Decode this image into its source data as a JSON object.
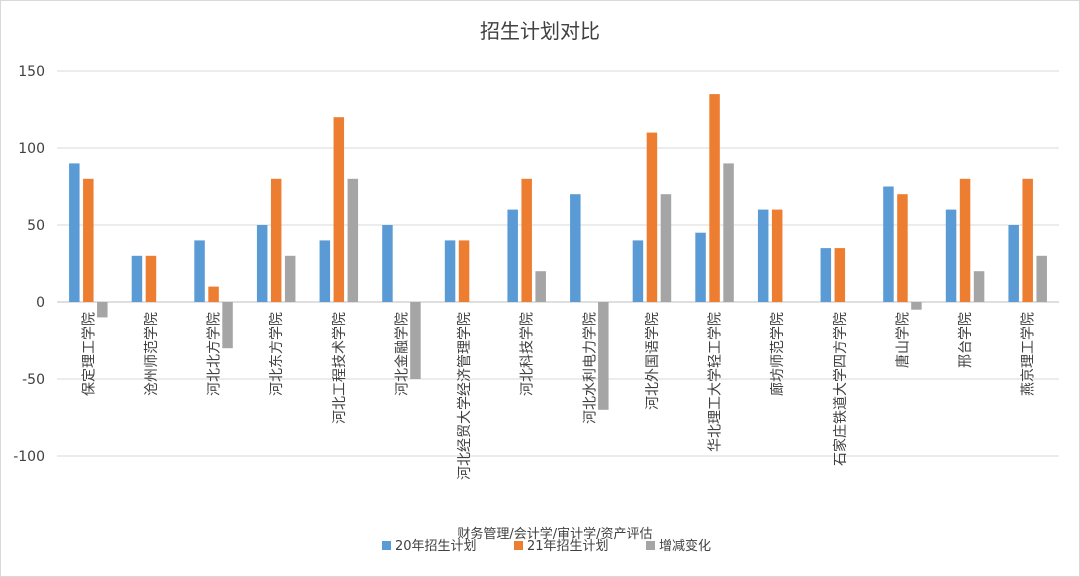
{
  "chart_data": {
    "type": "bar",
    "title": "招生计划对比",
    "xlabel": "财务管理/会计学/审计学/资产评估",
    "ylabel": "",
    "ylim": [
      -150,
      150
    ],
    "yticks": [
      150,
      100,
      50,
      0,
      -50,
      -100
    ],
    "grid": true,
    "legend_position": "bottom",
    "categories": [
      "保定理工学院",
      "沧州师范学院",
      "河北北方学院",
      "河北东方学院",
      "河北工程技术学院",
      "河北金融学院",
      "河北经贸大学经济管理学院",
      "河北科技学院",
      "河北水利电力学院",
      "河北外国语学院",
      "华北理工大学轻工学院",
      "廊坊师范学院",
      "石家庄铁道大学四方学院",
      "唐山学院",
      "邢台学院",
      "燕京理工学院"
    ],
    "series": [
      {
        "name": "20年招生计划",
        "color": "#5b9bd5",
        "values": [
          90,
          30,
          40,
          50,
          40,
          50,
          40,
          60,
          70,
          40,
          45,
          60,
          35,
          75,
          60,
          50
        ]
      },
      {
        "name": "21年招生计划",
        "color": "#ed7d31",
        "values": [
          80,
          30,
          10,
          80,
          120,
          0,
          40,
          80,
          0,
          110,
          135,
          60,
          35,
          70,
          80,
          80
        ]
      },
      {
        "name": "增减变化",
        "color": "#a5a5a5",
        "values": [
          -10,
          0,
          -30,
          30,
          80,
          -50,
          0,
          20,
          -70,
          70,
          90,
          0,
          0,
          -5,
          20,
          30
        ]
      }
    ]
  }
}
